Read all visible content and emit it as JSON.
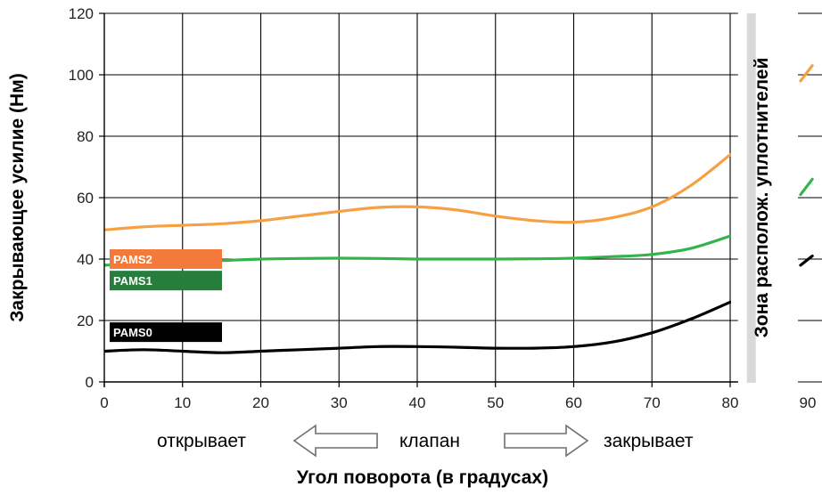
{
  "chart_data": {
    "type": "line",
    "xlabel": "Угол поворота (в градусах)",
    "ylabel": "Закрывающее усилие (Нм)",
    "right_label": "Зона располож. уплотнителей",
    "xlim": [
      0,
      90
    ],
    "ylim": [
      0,
      120
    ],
    "plot_xmax": 81,
    "x_ticks": [
      0,
      10,
      20,
      30,
      40,
      50,
      60,
      70,
      80,
      90
    ],
    "y_ticks": [
      0,
      20,
      40,
      60,
      80,
      100,
      120
    ],
    "grid": true,
    "direction": {
      "open": "открывает",
      "valve": "клапан",
      "close": "закрывает"
    },
    "series": [
      {
        "name": "PAMS2",
        "color": "#F7A043",
        "label_color": "#F47A3C",
        "x": [
          0,
          5,
          10,
          15,
          20,
          25,
          30,
          35,
          40,
          45,
          50,
          55,
          60,
          65,
          70,
          75,
          80
        ],
        "values": [
          49.5,
          50.5,
          51,
          51.5,
          52.5,
          54,
          55.5,
          56.8,
          57,
          56,
          54,
          52.5,
          52,
          53.5,
          57,
          64,
          74
        ],
        "seal_zone_x": [
          89,
          90.5
        ],
        "seal_zone_values": [
          98,
          103
        ]
      },
      {
        "name": "PAMS1",
        "color": "#33B44A",
        "label_color": "#267D3C",
        "x": [
          0,
          5,
          10,
          15,
          20,
          25,
          30,
          35,
          40,
          45,
          50,
          55,
          60,
          65,
          70,
          75,
          80
        ],
        "values": [
          38,
          38.5,
          39,
          39.5,
          40,
          40.2,
          40.3,
          40.2,
          40,
          40,
          40,
          40.1,
          40.3,
          40.8,
          41.5,
          43.5,
          47.5
        ],
        "seal_zone_x": [
          89,
          90.5
        ],
        "seal_zone_values": [
          61,
          66
        ]
      },
      {
        "name": "PAMS0",
        "color": "#000000",
        "label_color": "#000000",
        "x": [
          0,
          5,
          10,
          15,
          20,
          25,
          30,
          35,
          40,
          45,
          50,
          55,
          60,
          65,
          70,
          75,
          80
        ],
        "values": [
          10,
          10.5,
          10,
          9.5,
          10,
          10.5,
          11,
          11.5,
          11.5,
          11.3,
          11,
          11,
          11.5,
          13,
          16,
          20.5,
          26
        ],
        "seal_zone_x": [
          89,
          90.5
        ],
        "seal_zone_values": [
          38,
          41
        ]
      }
    ]
  }
}
